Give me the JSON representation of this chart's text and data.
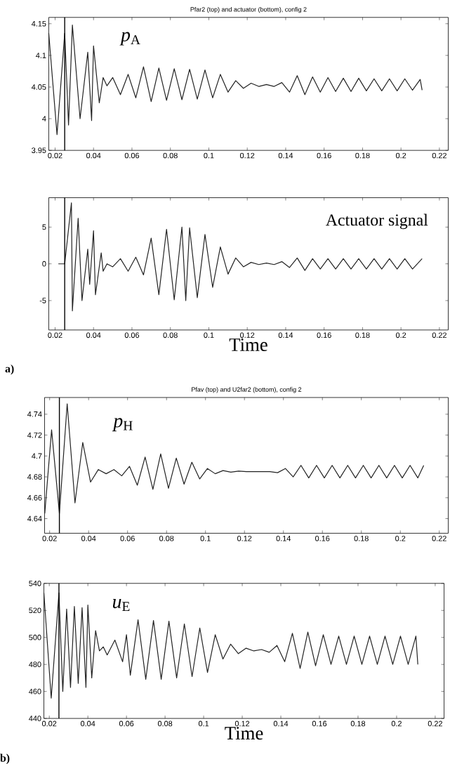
{
  "chart_data": [
    {
      "type": "line",
      "title": "Pfar2 (top) and actuator (bottom), config 2",
      "xlim": [
        0.0167,
        0.2246
      ],
      "ylim": [
        3.95,
        4.16
      ],
      "xticks": [
        0.02,
        0.04,
        0.06,
        0.08,
        0.1,
        0.12,
        0.14,
        0.16,
        0.18,
        0.2,
        0.22
      ],
      "yticks": [
        3.95,
        4,
        4.05,
        4.1,
        4.15
      ],
      "marker": "none",
      "line_style": "solid",
      "annotations": [
        "*p*$_{A}$"
      ],
      "ref_lines": [
        {
          "axis": "x",
          "value": 0.025,
          "color": "#000000"
        }
      ],
      "series": [
        {
          "color": "#222222",
          "x": [
            0.0167,
            0.021,
            0.025,
            0.027,
            0.029,
            0.033,
            0.037,
            0.039,
            0.04,
            0.043,
            0.045,
            0.047,
            0.05,
            0.054,
            0.058,
            0.062,
            0.066,
            0.07,
            0.074,
            0.078,
            0.082,
            0.086,
            0.09,
            0.094,
            0.098,
            0.102,
            0.106,
            0.11,
            0.114,
            0.118,
            0.122,
            0.126,
            0.13,
            0.134,
            0.138,
            0.142,
            0.146,
            0.15,
            0.154,
            0.158,
            0.162,
            0.166,
            0.17,
            0.174,
            0.178,
            0.182,
            0.186,
            0.19,
            0.194,
            0.198,
            0.202,
            0.206,
            0.21,
            0.211
          ],
          "values": [
            4.135,
            3.975,
            4.135,
            3.99,
            4.148,
            4.0,
            4.105,
            3.997,
            4.115,
            4.025,
            4.065,
            4.052,
            4.065,
            4.038,
            4.07,
            4.033,
            4.082,
            4.027,
            4.08,
            4.029,
            4.079,
            4.03,
            4.078,
            4.031,
            4.077,
            4.033,
            4.07,
            4.042,
            4.06,
            4.048,
            4.056,
            4.051,
            4.054,
            4.051,
            4.057,
            4.042,
            4.068,
            4.038,
            4.066,
            4.042,
            4.065,
            4.043,
            4.064,
            4.043,
            4.064,
            4.044,
            4.063,
            4.044,
            4.063,
            4.044,
            4.063,
            4.045,
            4.062,
            4.045
          ]
        }
      ]
    },
    {
      "type": "line",
      "xlabel": "Time",
      "xlim": [
        0.0167,
        0.2246
      ],
      "ylim": [
        -9,
        9
      ],
      "xticks": [
        0.02,
        0.04,
        0.06,
        0.08,
        0.1,
        0.12,
        0.14,
        0.16,
        0.18,
        0.2,
        0.22
      ],
      "yticks": [
        -5,
        0,
        5
      ],
      "marker": "none",
      "line_style": "solid",
      "annotations": [
        "Actuator signal",
        "**a)**"
      ],
      "ref_lines": [
        {
          "axis": "x",
          "value": 0.025,
          "color": "#000000"
        }
      ],
      "series": [
        {
          "color": "#222222",
          "x": [
            0.0217,
            0.025,
            0.0285,
            0.029,
            0.032,
            0.034,
            0.037,
            0.038,
            0.04,
            0.041,
            0.044,
            0.045,
            0.047,
            0.05,
            0.054,
            0.058,
            0.062,
            0.066,
            0.07,
            0.074,
            0.078,
            0.082,
            0.086,
            0.088,
            0.09,
            0.094,
            0.098,
            0.102,
            0.106,
            0.11,
            0.114,
            0.118,
            0.122,
            0.126,
            0.13,
            0.134,
            0.138,
            0.142,
            0.146,
            0.15,
            0.154,
            0.158,
            0.162,
            0.166,
            0.17,
            0.174,
            0.178,
            0.182,
            0.186,
            0.19,
            0.194,
            0.198,
            0.202,
            0.206,
            0.211
          ],
          "values": [
            0,
            0,
            8.3,
            -6.4,
            6.2,
            -5,
            2,
            -2.8,
            4.5,
            -4.2,
            1.5,
            -1,
            0,
            -0.4,
            0.7,
            -1,
            0.9,
            -1.5,
            3.5,
            -4.2,
            4.7,
            -4.9,
            5,
            -5,
            4.9,
            -4.6,
            4,
            -3.2,
            2.3,
            -1.4,
            0.8,
            -0.4,
            0.2,
            -0.1,
            0.1,
            -0.1,
            0.3,
            -0.5,
            0.8,
            -0.9,
            0.7,
            -0.7,
            0.7,
            -0.7,
            0.7,
            -0.7,
            0.7,
            -0.7,
            0.7,
            -0.7,
            0.7,
            -0.7,
            0.7,
            -0.7,
            0.7
          ]
        }
      ]
    },
    {
      "type": "line",
      "title": "Pfav (top) and U2far2 (bottom), config 2",
      "xlim": [
        0.0174,
        0.2246
      ],
      "ylim": [
        4.626,
        4.756
      ],
      "xticks": [
        0.02,
        0.04,
        0.06,
        0.08,
        0.1,
        0.12,
        0.14,
        0.16,
        0.18,
        0.2,
        0.22
      ],
      "yticks": [
        4.64,
        4.66,
        4.68,
        4.7,
        4.72,
        4.74
      ],
      "marker": "none",
      "line_style": "solid",
      "annotations": [
        "*p*$_{H}$"
      ],
      "ref_lines": [
        {
          "axis": "x",
          "value": 0.025,
          "color": "#000000"
        }
      ],
      "series": [
        {
          "color": "#222222",
          "x": [
            0.0175,
            0.021,
            0.025,
            0.029,
            0.033,
            0.037,
            0.041,
            0.045,
            0.049,
            0.053,
            0.057,
            0.061,
            0.065,
            0.069,
            0.073,
            0.077,
            0.081,
            0.085,
            0.089,
            0.093,
            0.097,
            0.101,
            0.105,
            0.109,
            0.113,
            0.117,
            0.121,
            0.125,
            0.129,
            0.133,
            0.137,
            0.141,
            0.145,
            0.149,
            0.153,
            0.157,
            0.161,
            0.165,
            0.169,
            0.173,
            0.177,
            0.181,
            0.185,
            0.189,
            0.193,
            0.197,
            0.201,
            0.205,
            0.209,
            0.212
          ],
          "values": [
            4.645,
            4.725,
            4.645,
            4.75,
            4.655,
            4.713,
            4.675,
            4.687,
            4.683,
            4.687,
            4.681,
            4.69,
            4.672,
            4.699,
            4.668,
            4.702,
            4.669,
            4.698,
            4.673,
            4.694,
            4.678,
            4.688,
            4.683,
            4.686,
            4.6845,
            4.6855,
            4.685,
            4.685,
            4.685,
            4.685,
            4.684,
            4.688,
            4.68,
            4.691,
            4.679,
            4.691,
            4.679,
            4.691,
            4.679,
            4.691,
            4.679,
            4.691,
            4.679,
            4.691,
            4.679,
            4.691,
            4.679,
            4.691,
            4.679,
            4.691
          ]
        }
      ]
    },
    {
      "type": "line",
      "xlabel": "Time",
      "xlim": [
        0.0172,
        0.2246
      ],
      "ylim": [
        440,
        540
      ],
      "xticks": [
        0.02,
        0.04,
        0.06,
        0.08,
        0.1,
        0.12,
        0.14,
        0.16,
        0.18,
        0.2,
        0.22
      ],
      "yticks": [
        440,
        460,
        480,
        500,
        520,
        540
      ],
      "marker": "none",
      "line_style": "solid",
      "annotations": [
        "*u*$_{E}$",
        "**b)**"
      ],
      "ref_lines": [
        {
          "axis": "x",
          "value": 0.025,
          "color": "#000000"
        }
      ],
      "series": [
        {
          "color": "#222222",
          "x": [
            0.0172,
            0.021,
            0.025,
            0.027,
            0.029,
            0.031,
            0.033,
            0.035,
            0.037,
            0.039,
            0.04,
            0.042,
            0.044,
            0.046,
            0.048,
            0.05,
            0.054,
            0.058,
            0.06,
            0.062,
            0.066,
            0.07,
            0.074,
            0.078,
            0.082,
            0.086,
            0.09,
            0.094,
            0.098,
            0.102,
            0.106,
            0.11,
            0.114,
            0.118,
            0.122,
            0.126,
            0.13,
            0.134,
            0.138,
            0.142,
            0.146,
            0.15,
            0.154,
            0.158,
            0.162,
            0.166,
            0.17,
            0.174,
            0.178,
            0.182,
            0.186,
            0.19,
            0.194,
            0.198,
            0.202,
            0.206,
            0.21,
            0.211
          ],
          "values": [
            533,
            455,
            533,
            460,
            521,
            463,
            523,
            466,
            522,
            463,
            524,
            470,
            505,
            490,
            493,
            487,
            498,
            482,
            502,
            472,
            513,
            469,
            512.5,
            469,
            512,
            470,
            510,
            471,
            507,
            474,
            502,
            484,
            495,
            488,
            492,
            490,
            491,
            489,
            494,
            482,
            503,
            477,
            504,
            479,
            502,
            480,
            501,
            480,
            501,
            480,
            501,
            480,
            501,
            480,
            501,
            480,
            501,
            480
          ]
        }
      ]
    }
  ]
}
